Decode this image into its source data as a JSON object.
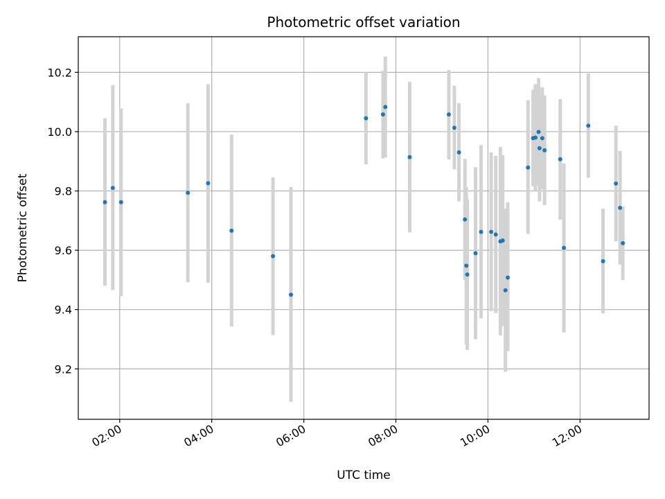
{
  "chart_data": {
    "type": "scatter",
    "title": "Photometric offset variation",
    "xlabel": "UTC time",
    "ylabel": "Photometric offset",
    "x_unit": "hours (UTC)",
    "xlim": [
      1.1,
      13.5
    ],
    "ylim": [
      9.03,
      10.32
    ],
    "x_ticks": [
      {
        "value": 2,
        "label": "02:00"
      },
      {
        "value": 4,
        "label": "04:00"
      },
      {
        "value": 6,
        "label": "06:00"
      },
      {
        "value": 8,
        "label": "08:00"
      },
      {
        "value": 10,
        "label": "10:00"
      },
      {
        "value": 12,
        "label": "12:00"
      }
    ],
    "y_ticks": [
      {
        "value": 9.2,
        "label": "9.2"
      },
      {
        "value": 9.4,
        "label": "9.4"
      },
      {
        "value": 9.6,
        "label": "9.6"
      },
      {
        "value": 9.8,
        "label": "9.8"
      },
      {
        "value": 10.0,
        "label": "10.0"
      },
      {
        "value": 10.2,
        "label": "10.2"
      }
    ],
    "grid": true,
    "legend": "none",
    "colors": {
      "point": "#1f77b4",
      "errorbar": "#d3d3d3",
      "grid": "#b0b0b0"
    },
    "points": [
      {
        "x": 1.68,
        "y": 9.762,
        "low": 9.48,
        "high": 10.045
      },
      {
        "x": 1.85,
        "y": 9.81,
        "low": 9.466,
        "high": 10.157
      },
      {
        "x": 2.03,
        "y": 9.762,
        "low": 9.445,
        "high": 10.078
      },
      {
        "x": 3.48,
        "y": 9.794,
        "low": 9.492,
        "high": 10.096
      },
      {
        "x": 3.92,
        "y": 9.826,
        "low": 9.49,
        "high": 10.16
      },
      {
        "x": 4.43,
        "y": 9.666,
        "low": 9.343,
        "high": 9.99
      },
      {
        "x": 5.33,
        "y": 9.58,
        "low": 9.314,
        "high": 9.846
      },
      {
        "x": 5.72,
        "y": 9.45,
        "low": 9.089,
        "high": 9.813
      },
      {
        "x": 7.35,
        "y": 10.045,
        "low": 9.89,
        "high": 10.2
      },
      {
        "x": 7.72,
        "y": 10.058,
        "low": 9.91,
        "high": 10.205
      },
      {
        "x": 7.77,
        "y": 10.083,
        "low": 9.913,
        "high": 10.253
      },
      {
        "x": 8.3,
        "y": 9.914,
        "low": 9.66,
        "high": 10.168
      },
      {
        "x": 9.15,
        "y": 10.058,
        "low": 9.906,
        "high": 10.208
      },
      {
        "x": 9.27,
        "y": 10.013,
        "low": 9.873,
        "high": 10.155
      },
      {
        "x": 9.37,
        "y": 9.93,
        "low": 9.765,
        "high": 10.096
      },
      {
        "x": 9.5,
        "y": 9.704,
        "low": 9.5,
        "high": 9.908
      },
      {
        "x": 9.53,
        "y": 9.548,
        "low": 9.283,
        "high": 9.813
      },
      {
        "x": 9.55,
        "y": 9.518,
        "low": 9.264,
        "high": 9.772
      },
      {
        "x": 9.73,
        "y": 9.59,
        "low": 9.3,
        "high": 9.88
      },
      {
        "x": 9.85,
        "y": 9.662,
        "low": 9.37,
        "high": 9.955
      },
      {
        "x": 10.07,
        "y": 9.662,
        "low": 9.395,
        "high": 9.93
      },
      {
        "x": 10.17,
        "y": 9.653,
        "low": 9.388,
        "high": 9.918
      },
      {
        "x": 10.27,
        "y": 9.63,
        "low": 9.313,
        "high": 9.948
      },
      {
        "x": 10.32,
        "y": 9.633,
        "low": 9.345,
        "high": 9.921
      },
      {
        "x": 10.38,
        "y": 9.465,
        "low": 9.19,
        "high": 9.74
      },
      {
        "x": 10.43,
        "y": 9.508,
        "low": 9.26,
        "high": 9.762
      },
      {
        "x": 10.87,
        "y": 9.879,
        "low": 9.655,
        "high": 10.106
      },
      {
        "x": 10.98,
        "y": 9.978,
        "low": 9.816,
        "high": 10.141
      },
      {
        "x": 11.03,
        "y": 9.98,
        "low": 9.8,
        "high": 10.16
      },
      {
        "x": 11.1,
        "y": 9.999,
        "low": 9.818,
        "high": 10.181
      },
      {
        "x": 11.12,
        "y": 9.944,
        "low": 9.765,
        "high": 10.124
      },
      {
        "x": 11.18,
        "y": 9.978,
        "low": 9.806,
        "high": 10.15
      },
      {
        "x": 11.23,
        "y": 9.937,
        "low": 9.752,
        "high": 10.122
      },
      {
        "x": 11.57,
        "y": 9.907,
        "low": 9.703,
        "high": 10.11
      },
      {
        "x": 11.65,
        "y": 9.608,
        "low": 9.323,
        "high": 9.893
      },
      {
        "x": 12.18,
        "y": 10.02,
        "low": 9.844,
        "high": 10.196
      },
      {
        "x": 12.5,
        "y": 9.563,
        "low": 9.387,
        "high": 9.74
      },
      {
        "x": 12.78,
        "y": 9.825,
        "low": 9.63,
        "high": 10.02
      },
      {
        "x": 12.87,
        "y": 9.743,
        "low": 9.552,
        "high": 9.935
      },
      {
        "x": 12.93,
        "y": 9.624,
        "low": 9.5,
        "high": 9.748
      }
    ]
  }
}
